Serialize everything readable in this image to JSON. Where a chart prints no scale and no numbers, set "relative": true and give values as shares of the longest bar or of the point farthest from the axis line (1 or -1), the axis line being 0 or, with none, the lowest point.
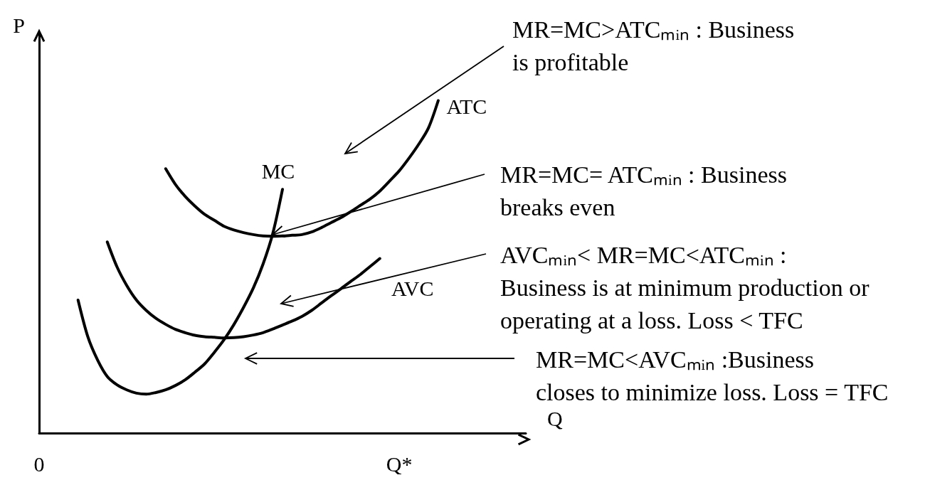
{
  "chart_data": {
    "type": "line",
    "relative": true,
    "xlabel": "Q",
    "ylabel": "P",
    "categories": [
      "0",
      null,
      null,
      null,
      null,
      null,
      null,
      null,
      null,
      null,
      null,
      null,
      null,
      null,
      null,
      null,
      null,
      null,
      null,
      null,
      null,
      null,
      null,
      null,
      null,
      null,
      null,
      null,
      null,
      null,
      null,
      null,
      null,
      null,
      null,
      null,
      null,
      "Q*",
      null,
      null,
      null,
      null,
      null,
      null,
      null,
      null,
      null,
      null,
      null,
      null,
      null
    ],
    "grid": false,
    "legend": false,
    "marker": "none",
    "line_style": "solid",
    "series": [
      {
        "name": "MC",
        "color": "#000000",
        "values": [
          null,
          null,
          null,
          null,
          0.4,
          0.29,
          0.22,
          0.17,
          0.145,
          0.13,
          0.12,
          0.117,
          0.122,
          0.13,
          0.143,
          0.16,
          0.183,
          0.208,
          0.243,
          0.281,
          0.326,
          0.378,
          0.436,
          0.508,
          0.6,
          0.733,
          null,
          null,
          null,
          null,
          null,
          null,
          null,
          null,
          null,
          null,
          null,
          null,
          null,
          null,
          null,
          null,
          null,
          null,
          null,
          null,
          null,
          null,
          null,
          null,
          null
        ]
      },
      {
        "name": "ATC",
        "color": "#000000",
        "values": [
          null,
          null,
          null,
          null,
          null,
          null,
          null,
          null,
          null,
          null,
          null,
          null,
          null,
          0.795,
          0.748,
          0.712,
          0.683,
          0.658,
          0.64,
          0.622,
          0.611,
          0.603,
          0.597,
          0.593,
          0.592,
          0.593,
          0.595,
          0.597,
          0.605,
          0.618,
          0.633,
          0.648,
          0.666,
          0.685,
          0.704,
          0.728,
          0.758,
          0.789,
          0.827,
          0.869,
          0.918,
          1.0,
          null,
          null,
          null,
          null,
          null,
          null,
          null,
          null,
          null
        ]
      },
      {
        "name": "AVC",
        "color": "#000000",
        "values": [
          null,
          null,
          null,
          null,
          null,
          null,
          null,
          0.575,
          0.5,
          0.444,
          0.4,
          0.369,
          0.345,
          0.327,
          0.312,
          0.302,
          0.294,
          0.29,
          0.288,
          0.286,
          0.287,
          0.29,
          0.295,
          0.302,
          0.313,
          0.325,
          0.337,
          0.351,
          0.369,
          0.391,
          0.413,
          0.434,
          0.456,
          0.477,
          0.501,
          0.525,
          null,
          null,
          null,
          null,
          null,
          null,
          null,
          null,
          null,
          null,
          null,
          null,
          null,
          null,
          null
        ]
      }
    ],
    "annotations": [
      "MR=MC>ATCₘᵢₙ : Business is profitable",
      "MR=MC= ATCₘᵢₙ : Business breaks even",
      "AVCₘᵢₙ< MR=MC<ATCₘᵢₙ : Business is at minimum production or operating at a loss. Loss < TFC",
      "MR=MC<AVCₘᵢₙ :Business closes to minimize loss. Loss = TFC"
    ]
  }
}
